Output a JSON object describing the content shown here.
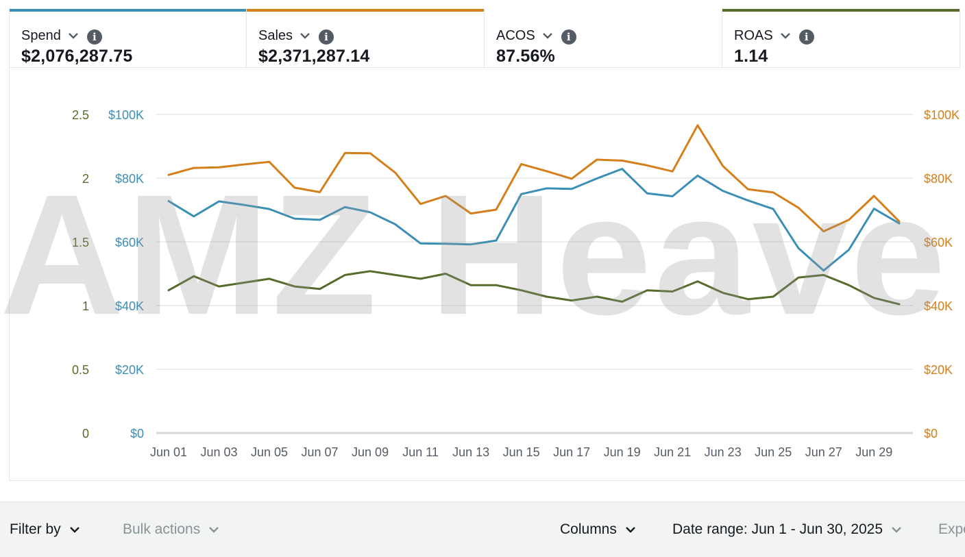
{
  "metrics": [
    {
      "label": "Spend",
      "value": "$2,076,287.75",
      "color": "#3b8fb4"
    },
    {
      "label": "Sales",
      "value": "$2,371,287.14",
      "color": "#d47f1a"
    },
    {
      "label": "ACOS",
      "value": "87.56%",
      "color": ""
    },
    {
      "label": "ROAS",
      "value": "1.14",
      "color": "#566b2c"
    }
  ],
  "watermark": "AMZ Heave",
  "toolbar": {
    "filter_label": "Filter by",
    "bulk_label": "Bulk actions",
    "columns_label": "Columns",
    "date_range_label": "Date range: Jun 1 - Jun 30, 2025",
    "export_label": "Expo"
  },
  "chart_data": {
    "type": "line",
    "x": [
      "Jun 01",
      "Jun 02",
      "Jun 03",
      "Jun 04",
      "Jun 05",
      "Jun 06",
      "Jun 07",
      "Jun 08",
      "Jun 09",
      "Jun 10",
      "Jun 11",
      "Jun 12",
      "Jun 13",
      "Jun 14",
      "Jun 15",
      "Jun 16",
      "Jun 17",
      "Jun 18",
      "Jun 19",
      "Jun 20",
      "Jun 21",
      "Jun 22",
      "Jun 23",
      "Jun 24",
      "Jun 25",
      "Jun 26",
      "Jun 27",
      "Jun 28",
      "Jun 29",
      "Jun 30"
    ],
    "x_tick_labels": [
      "Jun 01",
      "Jun 03",
      "Jun 05",
      "Jun 07",
      "Jun 09",
      "Jun 11",
      "Jun 13",
      "Jun 15",
      "Jun 17",
      "Jun 19",
      "Jun 21",
      "Jun 23",
      "Jun 25",
      "Jun 27",
      "Jun 29"
    ],
    "left_outer_ticks": [
      "0",
      "0.5",
      "1",
      "1.5",
      "2",
      "2.5"
    ],
    "left_inner_ticks": [
      "$0",
      "$20K",
      "$40K",
      "$60K",
      "$80K",
      "$100K"
    ],
    "right_ticks": [
      "$0",
      "$20K",
      "$40K",
      "$60K",
      "$80K",
      "$100K"
    ],
    "money_range": [
      0,
      100000
    ],
    "roas_range": [
      0,
      2.5
    ],
    "grid": true,
    "series": [
      {
        "name": "Spend",
        "axis": "money",
        "color": "#3b8fb4",
        "values": [
          72800,
          68000,
          72700,
          71600,
          70300,
          67300,
          66900,
          70900,
          69300,
          65500,
          59500,
          59400,
          59200,
          60400,
          75000,
          76800,
          76600,
          79900,
          82900,
          75200,
          74300,
          80800,
          76000,
          73000,
          70300,
          58000,
          51000,
          57500,
          70400,
          65800
        ]
      },
      {
        "name": "Sales",
        "axis": "money",
        "color": "#d47f1a",
        "values": [
          81000,
          83200,
          83400,
          84300,
          85100,
          77000,
          75600,
          87900,
          87800,
          81700,
          71900,
          74400,
          68900,
          70100,
          84400,
          82200,
          79800,
          85800,
          85500,
          84000,
          82100,
          96600,
          83800,
          76500,
          75500,
          70700,
          63300,
          66900,
          74400,
          66400
        ]
      },
      {
        "name": "ROAS",
        "axis": "roas",
        "color": "#566b2c",
        "values": [
          1.12,
          1.23,
          1.15,
          1.18,
          1.21,
          1.15,
          1.13,
          1.24,
          1.27,
          1.24,
          1.21,
          1.25,
          1.16,
          1.16,
          1.12,
          1.07,
          1.04,
          1.07,
          1.03,
          1.12,
          1.11,
          1.19,
          1.1,
          1.05,
          1.07,
          1.22,
          1.24,
          1.16,
          1.06,
          1.01
        ]
      }
    ]
  }
}
